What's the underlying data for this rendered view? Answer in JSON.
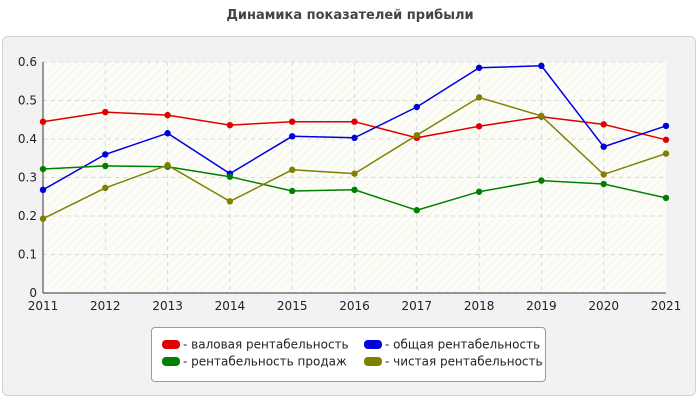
{
  "title": "Динамика показателей прибыли",
  "chart_data": {
    "type": "line",
    "title": "Динамика показателей прибыли",
    "x": [
      "2011",
      "2012",
      "2013",
      "2014",
      "2015",
      "2016",
      "2017",
      "2018",
      "2019",
      "2020",
      "2021"
    ],
    "ylim": [
      0,
      0.6
    ],
    "yticks": [
      "0",
      "0.1",
      "0.2",
      "0.3",
      "0.4",
      "0.5",
      "0.6"
    ],
    "grid": true,
    "legend_position": "bottom",
    "series": [
      {
        "name": "валовая рентабельность",
        "color": "#e00000",
        "values": [
          0.445,
          0.47,
          0.462,
          0.436,
          0.445,
          0.445,
          0.403,
          0.433,
          0.458,
          0.438,
          0.398
        ]
      },
      {
        "name": "общая рентабельность",
        "color": "#0000e0",
        "values": [
          0.268,
          0.36,
          0.415,
          0.31,
          0.407,
          0.403,
          0.483,
          0.585,
          0.59,
          0.38,
          0.434
        ]
      },
      {
        "name": "рентабельность продаж",
        "color": "#008000",
        "values": [
          0.322,
          0.33,
          0.328,
          0.302,
          0.265,
          0.268,
          0.215,
          0.263,
          0.292,
          0.283,
          0.247
        ]
      },
      {
        "name": "чистая рентабельность",
        "color": "#808000",
        "values": [
          0.193,
          0.273,
          0.332,
          0.238,
          0.32,
          0.31,
          0.41,
          0.508,
          0.46,
          0.308,
          0.362
        ]
      }
    ]
  },
  "legend": {
    "items": [
      {
        "label": "- валовая рентабельность",
        "color": "#e00000"
      },
      {
        "label": "- общая рентабельность",
        "color": "#0000e0"
      },
      {
        "label": "- рентабельность продаж",
        "color": "#008000"
      },
      {
        "label": "- чистая рентабельность",
        "color": "#808000"
      }
    ]
  }
}
